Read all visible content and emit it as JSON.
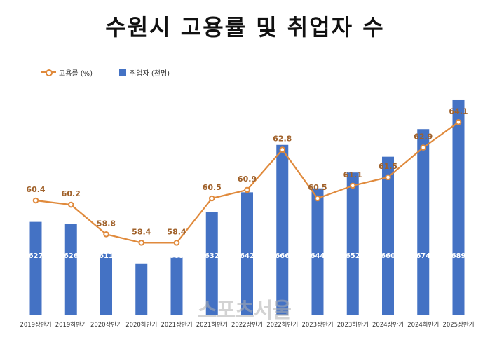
{
  "title": "수원시 고용률 및 취업자 수",
  "watermark": "스포츠서울",
  "colors": {
    "bar": "#4472C4",
    "line": "#E08A3C",
    "text": "#333333",
    "line_label": "#A0612A"
  },
  "chart_data": {
    "type": "bar",
    "title": "수원시 고용률 및 취업자 수",
    "categories": [
      "2019상반기",
      "2019하반기",
      "2020상반기",
      "2020하반기",
      "2021상반기",
      "2021하반기",
      "2022상반기",
      "2022하반기",
      "2023상반기",
      "2023하반기",
      "2024상반기",
      "2024하반기",
      "2025상반기"
    ],
    "series": [
      {
        "name": "취업자 (천명)",
        "type": "bar",
        "values": [
          627,
          626,
          611,
          606,
          609,
          632,
          642,
          666,
          644,
          652,
          660,
          674,
          689
        ],
        "ylim": [
          580,
          700
        ]
      },
      {
        "name": "고용률 (%)",
        "type": "line",
        "values": [
          60.4,
          60.2,
          58.8,
          58.4,
          58.4,
          60.5,
          60.9,
          62.8,
          60.5,
          61.1,
          61.5,
          62.9,
          64.1
        ],
        "ylim": [
          55,
          66
        ]
      }
    ],
    "legend_position": "top-left",
    "grid": false
  }
}
